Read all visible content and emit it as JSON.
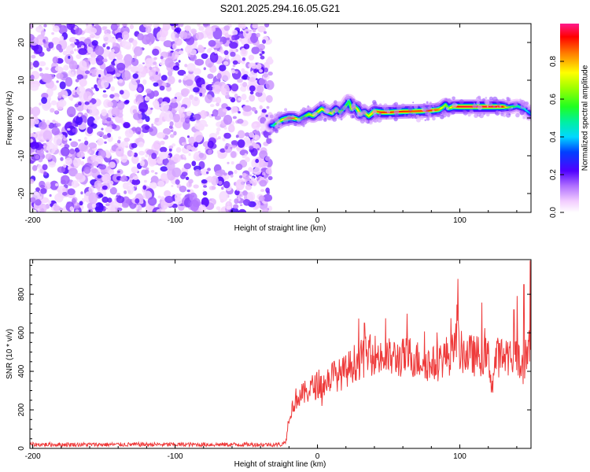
{
  "title": "S201.2025.294.16.05.G21",
  "chart_data": [
    {
      "type": "heatmap",
      "xlabel": "Height of straight line (km)",
      "ylabel": "Frequency (Hz)",
      "xlim": [
        -202,
        150
      ],
      "ylim": [
        -25,
        25
      ],
      "x_ticks": [
        -200,
        -100,
        0,
        100
      ],
      "y_ticks": [
        -20,
        -10,
        0,
        10,
        20
      ],
      "noise_region_x": [
        -202,
        -33
      ],
      "ridge": {
        "x": [
          -33,
          -31,
          -28,
          -25,
          -20,
          -17,
          -13,
          -10,
          -6,
          -3,
          0,
          3,
          6,
          10,
          13,
          16,
          18,
          20,
          22,
          24,
          26,
          28,
          30,
          33,
          36,
          40,
          45,
          50,
          60,
          70,
          80,
          85,
          88,
          90,
          92,
          95,
          100,
          110,
          120,
          130,
          135,
          140,
          145,
          150
        ],
        "freq": [
          -2.0,
          -2.0,
          -1.2,
          -0.5,
          0.0,
          0.0,
          -0.4,
          0.2,
          1.0,
          0.6,
          1.5,
          2.4,
          1.8,
          1.2,
          2.4,
          1.5,
          2.4,
          3.2,
          4.5,
          2.4,
          3.0,
          2.4,
          1.0,
          1.5,
          0.5,
          1.8,
          1.5,
          1.5,
          1.7,
          1.8,
          2.0,
          2.2,
          2.8,
          3.5,
          2.5,
          3.0,
          3.0,
          3.0,
          3.0,
          3.0,
          2.8,
          3.2,
          2.5,
          1.0
        ],
        "amplitude": [
          0.3,
          0.45,
          0.6,
          0.7,
          0.85,
          0.9,
          0.65,
          0.55,
          0.65,
          0.7,
          0.7,
          0.75,
          0.7,
          0.7,
          0.65,
          0.6,
          0.55,
          0.6,
          0.5,
          0.7,
          0.75,
          0.7,
          0.8,
          0.7,
          0.7,
          0.8,
          0.9,
          0.9,
          0.9,
          0.88,
          0.9,
          0.85,
          0.7,
          0.65,
          0.6,
          0.8,
          0.95,
          0.97,
          0.96,
          0.95,
          0.6,
          0.5,
          0.45,
          0.35
        ]
      },
      "colorbar": {
        "label": "Normalized spectral amplitude",
        "min": 0.0,
        "max": 1.0,
        "ticks": [
          0.0,
          0.2,
          0.4,
          0.6,
          0.8
        ]
      }
    },
    {
      "type": "line",
      "xlabel": "Height of straight line (km)",
      "ylabel": "SNR (10 * v/v)",
      "xlim": [
        -202,
        150
      ],
      "ylim": [
        0,
        980
      ],
      "x_ticks": [
        -200,
        -100,
        0,
        100
      ],
      "y_ticks": [
        0,
        200,
        400,
        600,
        800
      ],
      "series": [
        {
          "color": "#ee3a3a",
          "x": [
            -202,
            -150,
            -100,
            -50,
            -25,
            -22,
            -20,
            -15,
            -10,
            -5,
            0,
            5,
            10,
            15,
            20,
            25,
            30,
            35,
            40,
            45,
            50,
            55,
            60,
            65,
            70,
            75,
            80,
            85,
            90,
            95,
            98,
            100,
            105,
            110,
            115,
            120,
            123,
            125,
            130,
            135,
            140,
            143,
            145,
            147,
            150
          ],
          "y": [
            20,
            20,
            20,
            20,
            20,
            40,
            170,
            260,
            280,
            310,
            330,
            330,
            380,
            380,
            400,
            440,
            460,
            480,
            490,
            470,
            470,
            470,
            470,
            480,
            460,
            460,
            430,
            450,
            480,
            490,
            620,
            500,
            490,
            480,
            480,
            470,
            320,
            470,
            480,
            490,
            470,
            420,
            400,
            500,
            600
          ],
          "spikes": [
            {
              "x": 98.5,
              "y": 880
            },
            {
              "x": 145,
              "y": 850
            },
            {
              "x": 149.5,
              "y": 975
            },
            {
              "x": 138,
              "y": 720
            },
            {
              "x": 33,
              "y": 650
            }
          ]
        }
      ]
    }
  ]
}
